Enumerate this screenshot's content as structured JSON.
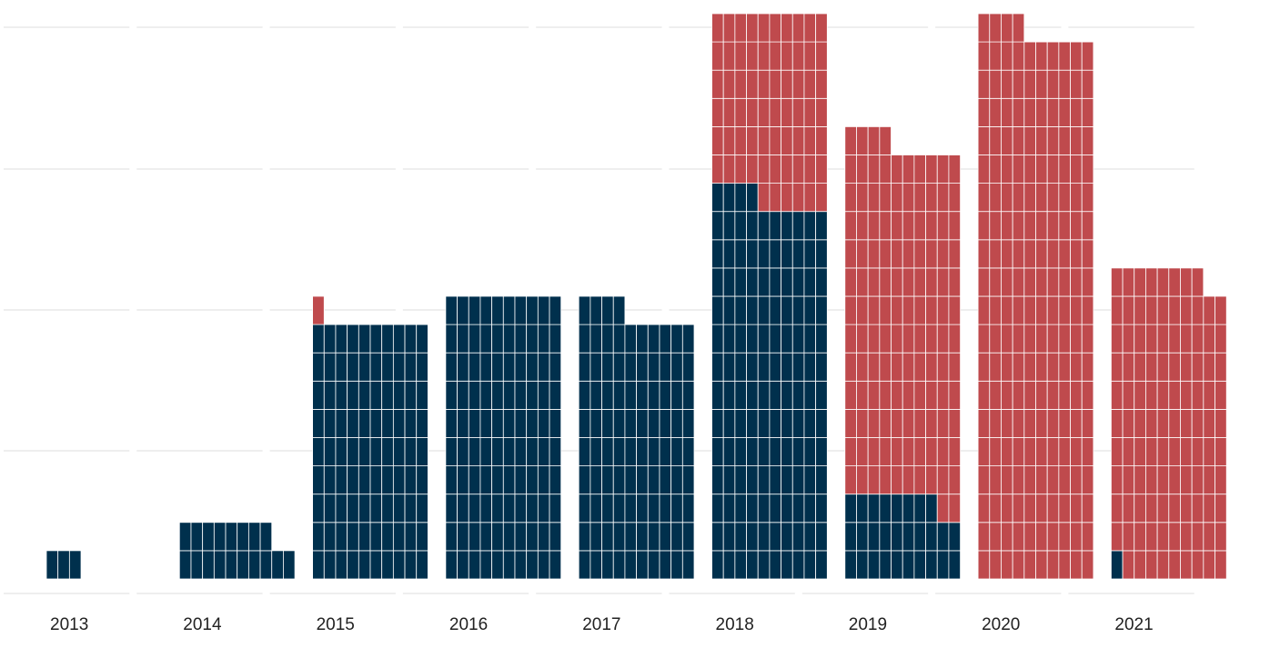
{
  "chart_data": {
    "type": "waffle",
    "title": "",
    "xlabel": "",
    "ylabel": "",
    "categories": [
      "2013",
      "2014",
      "2015",
      "2016",
      "2017",
      "2018",
      "2019",
      "2020",
      "2021"
    ],
    "cells_per_row": 10,
    "grid": true,
    "legend": "none",
    "colors": {
      "Blue": "#00304d",
      "Red": "#bf4a4d"
    },
    "series": [
      {
        "name": "Blue",
        "values": [
          3,
          18,
          90,
          100,
          94,
          134,
          28,
          0,
          1
        ]
      },
      {
        "name": "Red",
        "values": [
          0,
          0,
          1,
          0,
          0,
          66,
          126,
          194,
          107
        ]
      }
    ]
  }
}
